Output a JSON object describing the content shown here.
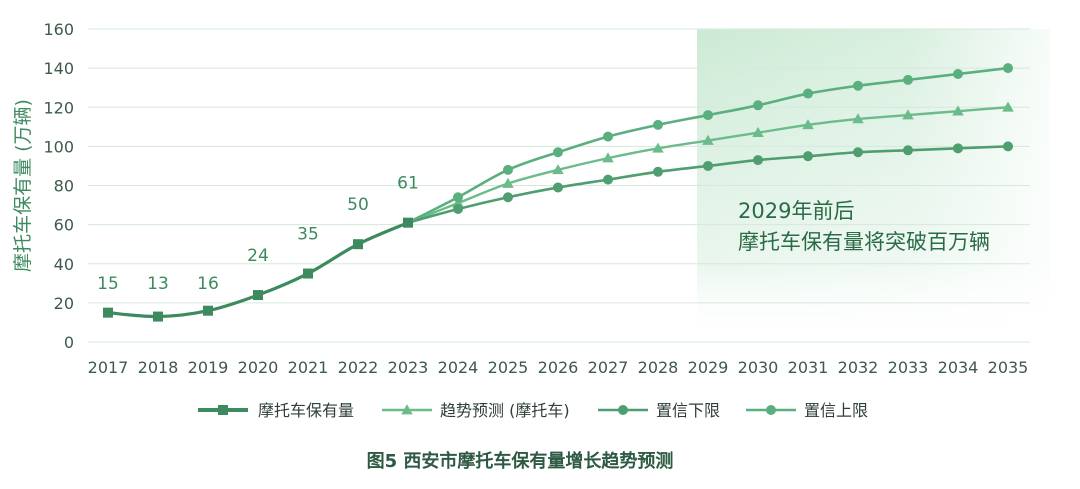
{
  "chart_data": {
    "type": "line",
    "title": "图5 西安市摩托车保有量增长趋势预测",
    "ylabel": "摩托车保有量 (万辆)",
    "xlabel": "",
    "ylim": [
      0,
      160
    ],
    "yticks": [
      0,
      20,
      40,
      60,
      80,
      100,
      120,
      140,
      160
    ],
    "x": [
      2017,
      2018,
      2019,
      2020,
      2021,
      2022,
      2023,
      2024,
      2025,
      2026,
      2027,
      2028,
      2029,
      2030,
      2031,
      2032,
      2033,
      2034,
      2035
    ],
    "grid": true,
    "legend_position": "bottom",
    "forecast_region": {
      "from": 2029,
      "to": 2035
    },
    "annotation": {
      "lines": [
        "2029年前后",
        "摩托车保有量将突破百万辆"
      ]
    },
    "series": [
      {
        "name": "摩托车保有量",
        "marker": "square",
        "x": [
          2017,
          2018,
          2019,
          2020,
          2021,
          2022,
          2023
        ],
        "values": [
          15,
          13,
          16,
          24,
          35,
          50,
          61
        ],
        "data_labels": [
          "15",
          "13",
          "16",
          "24",
          "35",
          "50",
          "61"
        ]
      },
      {
        "name": "趋势预测 (摩托车)",
        "marker": "triangle",
        "x": [
          2023,
          2024,
          2025,
          2026,
          2027,
          2028,
          2029,
          2030,
          2031,
          2032,
          2033,
          2034,
          2035
        ],
        "values": [
          61,
          71,
          81,
          88,
          94,
          99,
          103,
          107,
          111,
          114,
          116,
          118,
          120
        ]
      },
      {
        "name": "置信下限",
        "marker": "circle",
        "x": [
          2023,
          2024,
          2025,
          2026,
          2027,
          2028,
          2029,
          2030,
          2031,
          2032,
          2033,
          2034,
          2035
        ],
        "values": [
          61,
          68,
          74,
          79,
          83,
          87,
          90,
          93,
          95,
          97,
          98,
          99,
          100
        ]
      },
      {
        "name": "置信上限",
        "marker": "circle",
        "x": [
          2023,
          2024,
          2025,
          2026,
          2027,
          2028,
          2029,
          2030,
          2031,
          2032,
          2033,
          2034,
          2035
        ],
        "values": [
          61,
          74,
          88,
          97,
          105,
          111,
          116,
          121,
          127,
          131,
          134,
          137,
          140
        ]
      }
    ]
  },
  "colors": {
    "actual": "#3d8a5f",
    "trend": "#6cbb8a",
    "lower": "#4f9e70",
    "upper": "#5aaf7e",
    "axis_text": "#3f5a49",
    "title_text": "#2e5a43",
    "annotation_text": "#2a6b47",
    "grid": "#d6e8dc",
    "region": "#c9e9d3"
  }
}
